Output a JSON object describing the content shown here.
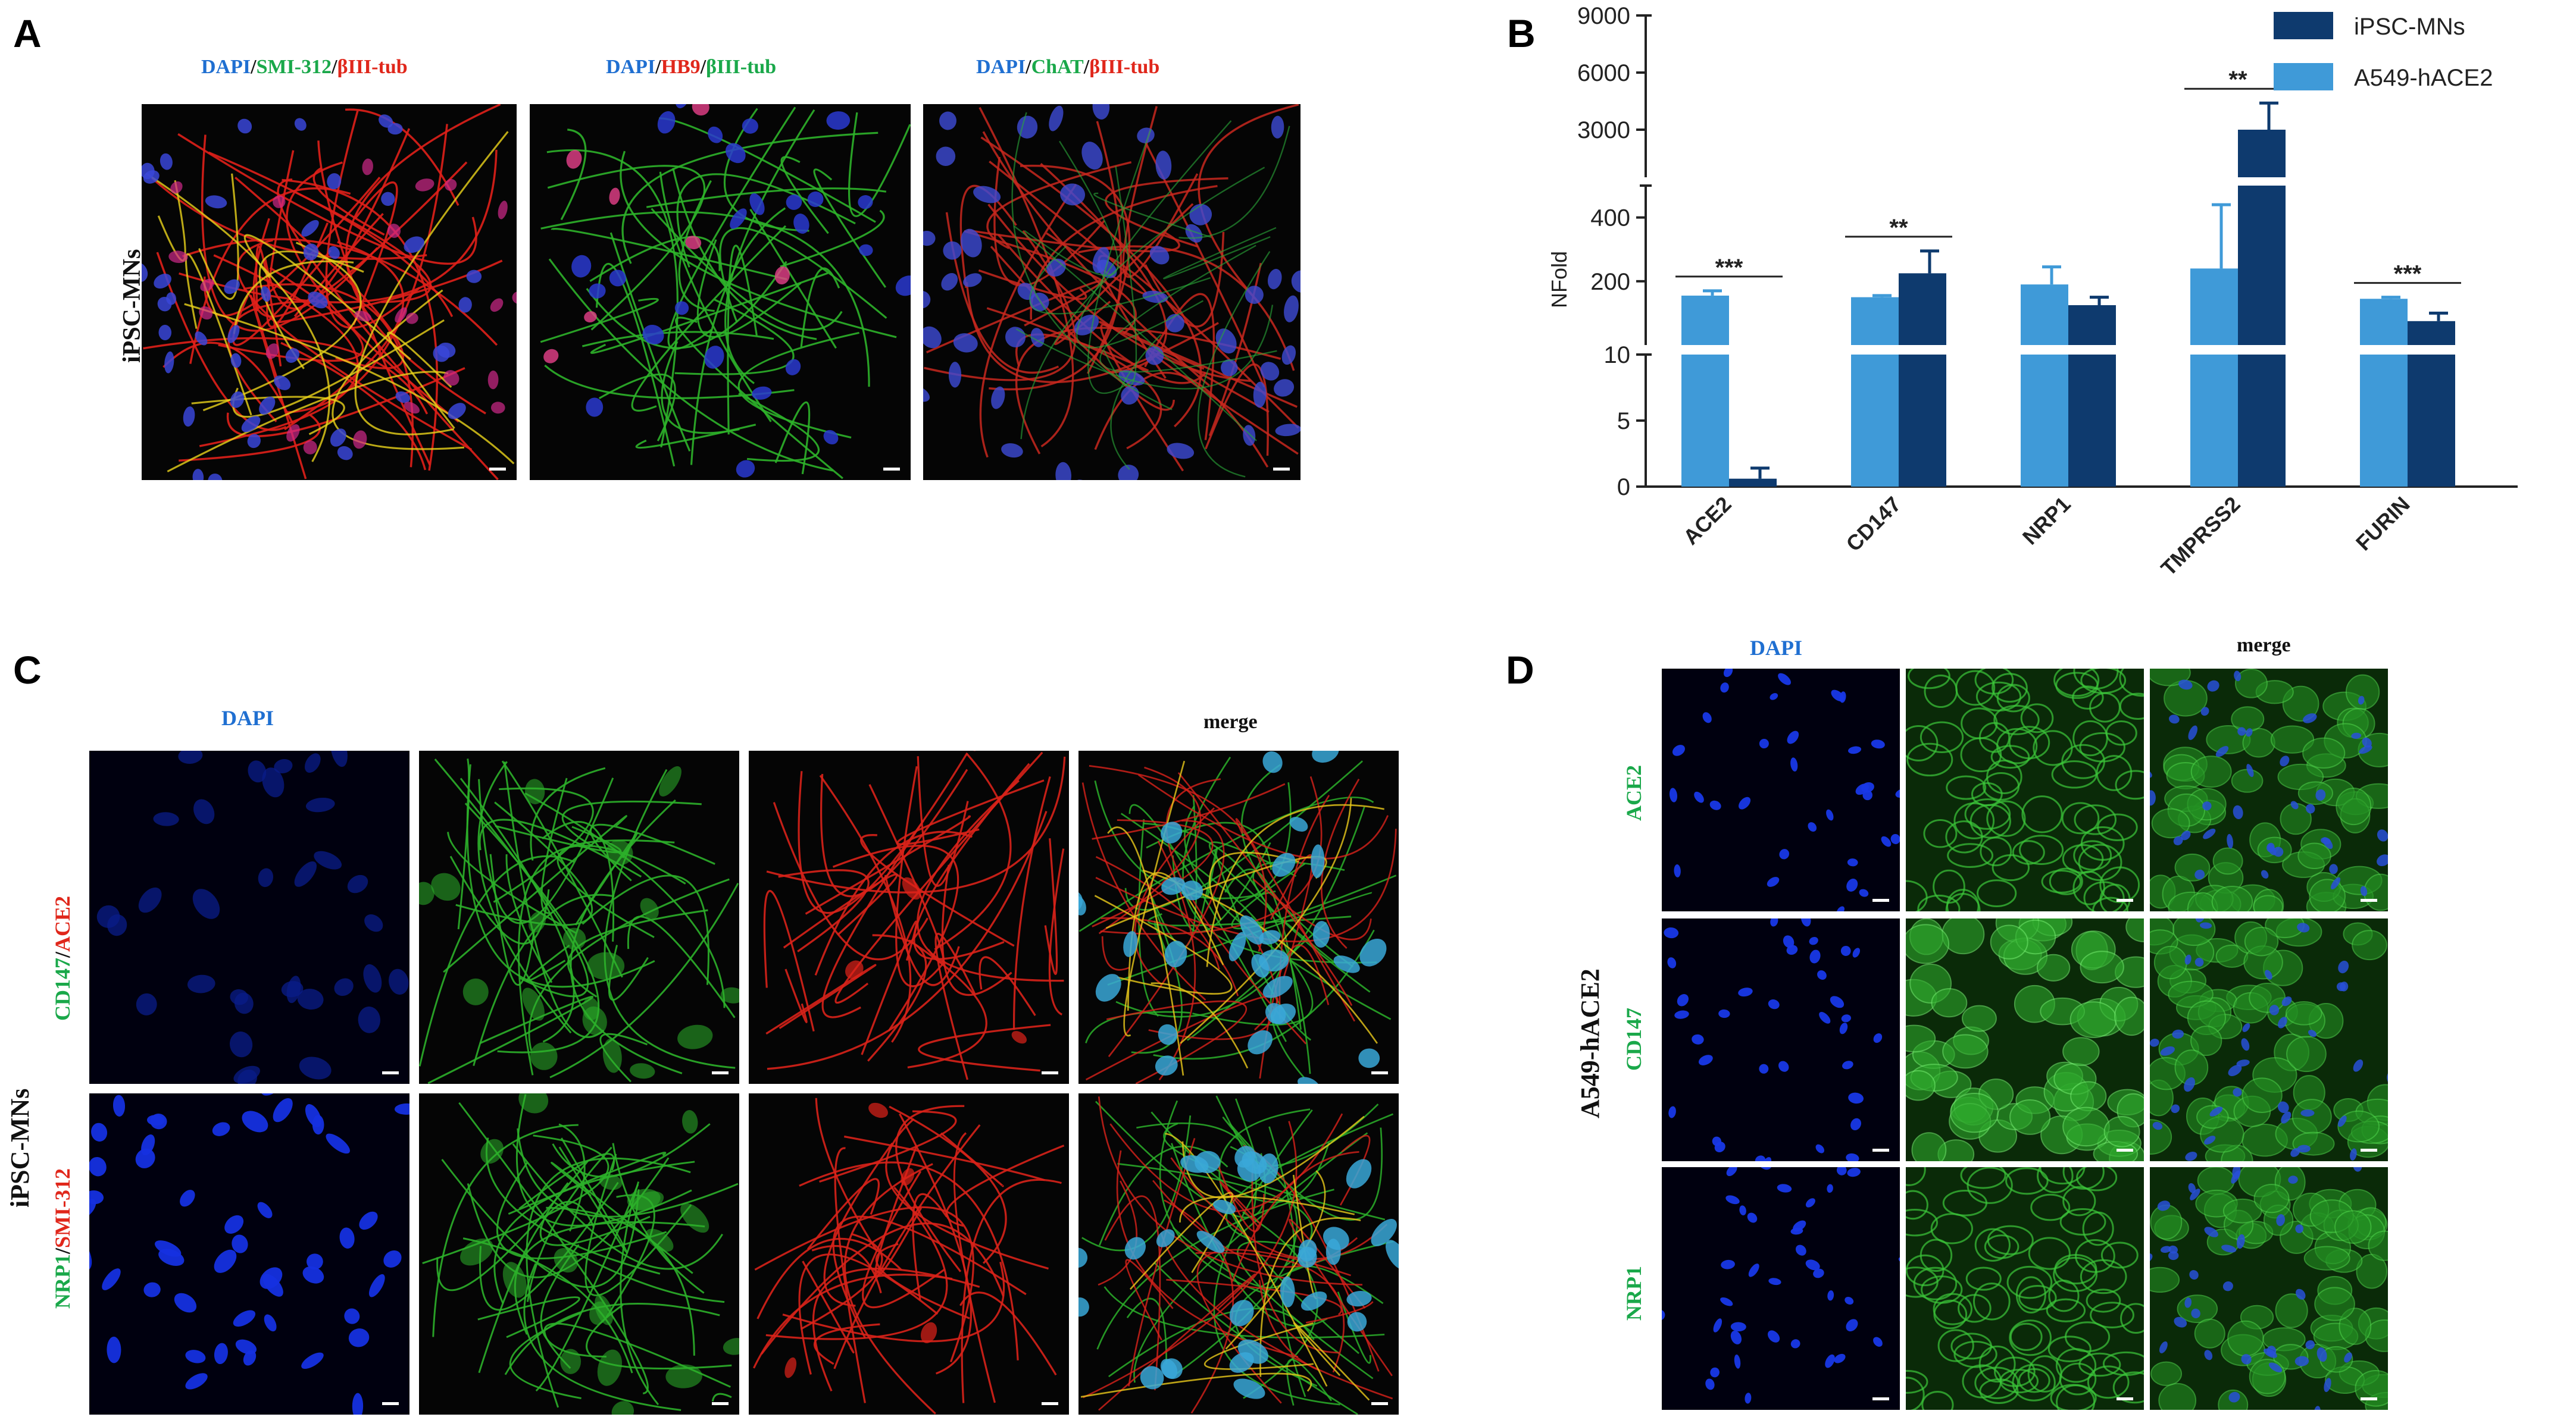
{
  "panels": {
    "A": {
      "label": "A",
      "row_label": "iPSC-MNs",
      "captions": [
        [
          {
            "t": "DAPI",
            "c": "blue"
          },
          {
            "t": "/",
            "c": "black"
          },
          {
            "t": "SMI-312",
            "c": "green"
          },
          {
            "t": "/",
            "c": "black"
          },
          {
            "t": "βIII-tub",
            "c": "red"
          }
        ],
        [
          {
            "t": "DAPI",
            "c": "blue"
          },
          {
            "t": "/",
            "c": "black"
          },
          {
            "t": "HB9",
            "c": "red"
          },
          {
            "t": "/",
            "c": "black"
          },
          {
            "t": "βIII-tub",
            "c": "green"
          }
        ],
        [
          {
            "t": "DAPI",
            "c": "blue"
          },
          {
            "t": "/",
            "c": "black"
          },
          {
            "t": "ChAT",
            "c": "green"
          },
          {
            "t": "/",
            "c": "black"
          },
          {
            "t": "βIII-tub",
            "c": "red"
          }
        ]
      ]
    },
    "B": {
      "label": "B"
    },
    "C": {
      "label": "C",
      "row_label": "iPSC-MNs",
      "col_dapi": "DAPI",
      "col_merge": "merge",
      "row1_label": [
        {
          "t": "CD147",
          "c": "green"
        },
        {
          "t": "/",
          "c": "black"
        },
        {
          "t": "ACE2",
          "c": "red"
        }
      ],
      "row2_label": [
        {
          "t": "NRP1",
          "c": "green"
        },
        {
          "t": "/",
          "c": "black"
        },
        {
          "t": "SMI-312",
          "c": "red"
        }
      ]
    },
    "D": {
      "label": "D",
      "row_label": "A549-hACE2",
      "col_dapi": "DAPI",
      "col_merge": "merge",
      "rows": [
        "ACE2",
        "CD147",
        "NRP1"
      ]
    }
  },
  "colors": {
    "dapi": "#1f6fd1",
    "green": "#1aa84a",
    "red": "#e0271b",
    "ipsc": "#0e3a6e",
    "a549": "#3f9ad8"
  },
  "chart_data": {
    "type": "bar",
    "ylabel": "NFold",
    "categories": [
      "ACE2",
      "CD147",
      "NRP1",
      "TMPRSS2",
      "FURIN"
    ],
    "series": [
      {
        "name": "A549-hACE2",
        "color": "#3f9ad8",
        "values": [
          155,
          150,
          190,
          240,
          145
        ],
        "errors": [
          15,
          5,
          55,
          200,
          5
        ]
      },
      {
        "name": "iPSC-MNs",
        "color": "#0e3a6e",
        "values": [
          0.6,
          225,
          125,
          3000,
          75
        ],
        "errors": [
          0.8,
          70,
          25,
          1400,
          25
        ]
      }
    ],
    "legend_order": [
      "iPSC-MNs",
      "A549-hACE2"
    ],
    "legend": "top-right",
    "axis_segments": [
      {
        "range": [
          0,
          10
        ],
        "ticks": [
          "0",
          "5",
          "10"
        ]
      },
      {
        "range": [
          0,
          500
        ],
        "ticks": [
          "200",
          "400"
        ]
      },
      {
        "range": [
          500,
          9000
        ],
        "ticks": [
          "3000",
          "6000",
          "9000"
        ]
      }
    ],
    "significance": [
      {
        "category": "ACE2",
        "label": "***"
      },
      {
        "category": "CD147",
        "label": "**"
      },
      {
        "category": "TMPRSS2",
        "label": "**"
      },
      {
        "category": "FURIN",
        "label": "***"
      }
    ]
  }
}
